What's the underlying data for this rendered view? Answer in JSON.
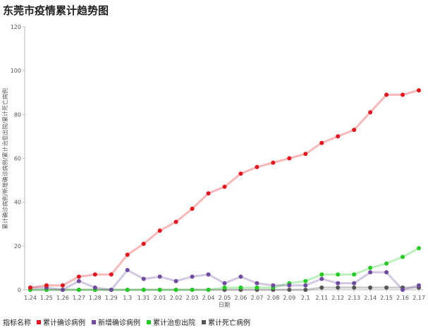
{
  "chart_data": {
    "type": "line",
    "title": "东莞市疫情累计趋势图",
    "xlabel": "日期",
    "ylabel": "累计确诊病例/新增确诊病例/累计治愈出院/累计死亡病例",
    "ylim": [
      0,
      120
    ],
    "yticks": [
      0,
      20,
      40,
      60,
      80,
      100,
      120
    ],
    "categories": [
      "1.24",
      "1.25",
      "1.26",
      "1.27",
      "1.28",
      "1.29",
      "1.3",
      "1.31",
      "2.01",
      "2.02",
      "2.03",
      "2.04",
      "2.05",
      "2.06",
      "2.07",
      "2.08",
      "2.09",
      "2.1",
      "2.11",
      "2.12",
      "2.13",
      "2.14",
      "2.15",
      "2.16",
      "2.17"
    ],
    "legend_title": "指标名称",
    "legend_position": "bottom-left",
    "grid": false,
    "series": [
      {
        "name": "累计确诊病例",
        "color": "#e8141c",
        "values": [
          1,
          2,
          2,
          6,
          7,
          7,
          16,
          21,
          27,
          31,
          37,
          44,
          47,
          53,
          56,
          58,
          60,
          62,
          67,
          70,
          73,
          81,
          89,
          89,
          91
        ]
      },
      {
        "name": "新增确诊病例",
        "color": "#6e4aa0",
        "values": [
          1,
          1,
          0,
          4,
          1,
          0,
          9,
          5,
          6,
          4,
          6,
          7,
          3,
          6,
          3,
          2,
          2,
          2,
          5,
          3,
          3,
          8,
          8,
          0,
          2
        ]
      },
      {
        "name": "累计治愈出院",
        "color": "#22cc22",
        "values": [
          0,
          0,
          0,
          0,
          0,
          0,
          0,
          0,
          0,
          0,
          0,
          0,
          1,
          1,
          1,
          1,
          3,
          4,
          7,
          7,
          7,
          10,
          12,
          15,
          19
        ]
      },
      {
        "name": "累计死亡病例",
        "color": "#555555",
        "values": [
          0,
          0,
          0,
          0,
          0,
          0,
          0,
          0,
          0,
          0,
          0,
          0,
          0,
          0,
          0,
          0,
          0,
          0,
          1,
          1,
          1,
          1,
          1,
          1,
          1
        ]
      }
    ]
  }
}
